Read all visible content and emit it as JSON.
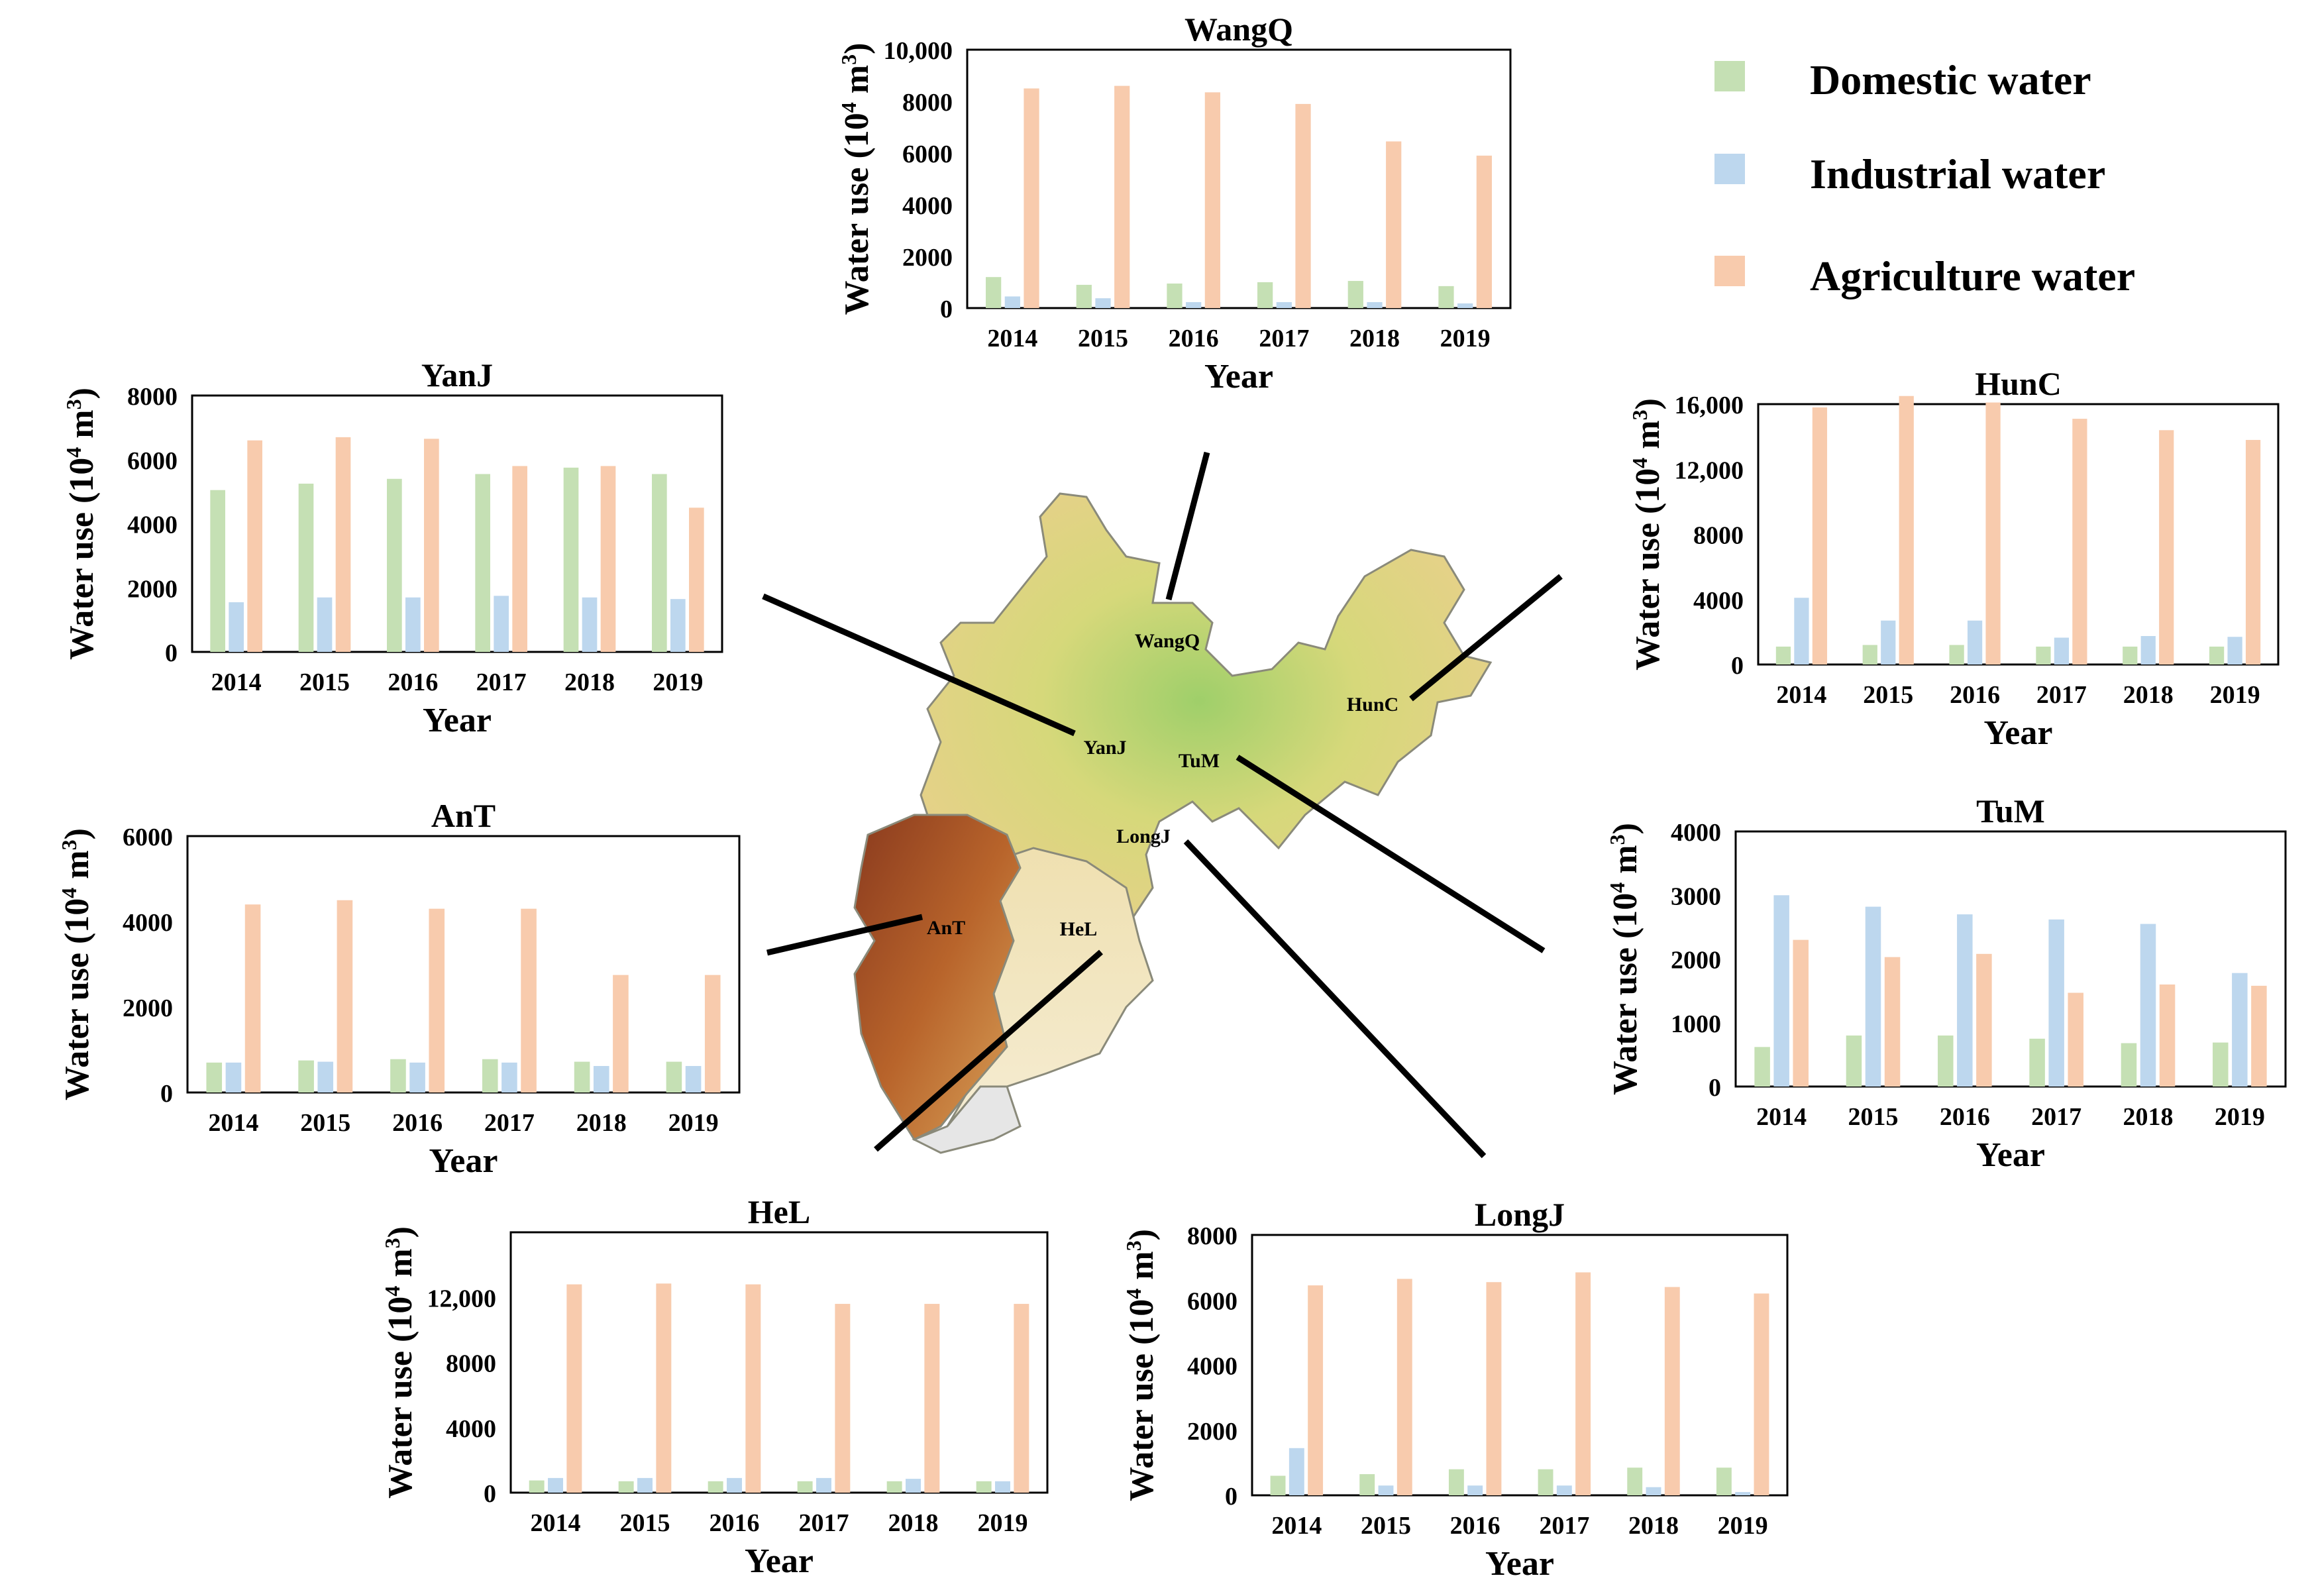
{
  "legend": [
    {
      "key": "domestic",
      "label": "Domestic water",
      "color": "#c5e0b4"
    },
    {
      "key": "industrial",
      "label": "Industrial water",
      "color": "#bdd7ee"
    },
    {
      "key": "agriculture",
      "label": "Agriculture water",
      "color": "#f8cbad"
    }
  ],
  "map": {
    "labels": [
      "WangQ",
      "HunC",
      "YanJ",
      "TuM",
      "LongJ",
      "AnT",
      "HeL"
    ]
  },
  "chart_data": [
    {
      "type": "bar",
      "title": "WangQ",
      "xlabel": "Year",
      "ylabel_main": "Water use (10",
      "ylabel_sup1": "4",
      "ylabel_mid": " m",
      "ylabel_sup2": "3",
      "ylabel_end": ")",
      "categories": [
        "2014",
        "2015",
        "2016",
        "2017",
        "2018",
        "2019"
      ],
      "ylim": [
        0,
        10000
      ],
      "yticks": [
        0,
        2000,
        4000,
        6000,
        8000,
        10000
      ],
      "ytick_labels": [
        "0",
        "2000",
        "4000",
        "6000",
        "8000",
        "10,000"
      ],
      "series": [
        {
          "name": "Domestic water",
          "values": [
            1200,
            900,
            950,
            1000,
            1050,
            850
          ]
        },
        {
          "name": "Industrial water",
          "values": [
            450,
            380,
            230,
            230,
            230,
            180
          ]
        },
        {
          "name": "Agriculture water",
          "values": [
            8500,
            8600,
            8350,
            7900,
            6450,
            5900
          ]
        }
      ]
    },
    {
      "type": "bar",
      "title": "YanJ",
      "xlabel": "Year",
      "ylabel_main": "Water use (10",
      "ylabel_sup1": "4",
      "ylabel_mid": " m",
      "ylabel_sup2": "3",
      "ylabel_end": ")",
      "categories": [
        "2014",
        "2015",
        "2016",
        "2017",
        "2018",
        "2019"
      ],
      "ylim": [
        0,
        8000
      ],
      "yticks": [
        0,
        2000,
        4000,
        6000,
        8000
      ],
      "ytick_labels": [
        "0",
        "2000",
        "4000",
        "6000",
        "8000"
      ],
      "series": [
        {
          "name": "Domestic water",
          "values": [
            5050,
            5250,
            5400,
            5550,
            5750,
            5550
          ]
        },
        {
          "name": "Industrial water",
          "values": [
            1550,
            1700,
            1700,
            1750,
            1700,
            1650
          ]
        },
        {
          "name": "Agriculture water",
          "values": [
            6600,
            6700,
            6650,
            5800,
            5800,
            4500
          ]
        }
      ]
    },
    {
      "type": "bar",
      "title": "HunC",
      "xlabel": "Year",
      "ylabel_main": "Water use (10",
      "ylabel_sup1": "4",
      "ylabel_mid": " m",
      "ylabel_sup2": "3",
      "ylabel_end": ")",
      "categories": [
        "2014",
        "2015",
        "2016",
        "2017",
        "2018",
        "2019"
      ],
      "ylim": [
        0,
        16000
      ],
      "yticks": [
        0,
        4000,
        8000,
        12000,
        16000
      ],
      "ytick_labels": [
        "0",
        "4000",
        "8000",
        "12,000",
        "16,000"
      ],
      "series": [
        {
          "name": "Domestic water",
          "values": [
            1100,
            1200,
            1200,
            1100,
            1100,
            1100
          ]
        },
        {
          "name": "Industrial water",
          "values": [
            4100,
            2700,
            2700,
            1650,
            1750,
            1700
          ]
        },
        {
          "name": "Agriculture water",
          "values": [
            15800,
            16500,
            16100,
            15100,
            14400,
            13800
          ]
        }
      ]
    },
    {
      "type": "bar",
      "title": "AnT",
      "xlabel": "Year",
      "ylabel_main": "Water use (10",
      "ylabel_sup1": "4",
      "ylabel_mid": " m",
      "ylabel_sup2": "3",
      "ylabel_end": ")",
      "categories": [
        "2014",
        "2015",
        "2016",
        "2017",
        "2018",
        "2019"
      ],
      "ylim": [
        0,
        6000
      ],
      "yticks": [
        0,
        2000,
        4000,
        6000
      ],
      "ytick_labels": [
        "0",
        "2000",
        "4000",
        "6000"
      ],
      "series": [
        {
          "name": "Domestic water",
          "values": [
            700,
            750,
            780,
            780,
            720,
            720
          ]
        },
        {
          "name": "Industrial water",
          "values": [
            700,
            720,
            700,
            700,
            620,
            620
          ]
        },
        {
          "name": "Agriculture water",
          "values": [
            4400,
            4500,
            4300,
            4300,
            2750,
            2750
          ]
        }
      ]
    },
    {
      "type": "bar",
      "title": "TuM",
      "xlabel": "Year",
      "ylabel_main": "Water use (10",
      "ylabel_sup1": "4",
      "ylabel_mid": " m",
      "ylabel_sup2": "3",
      "ylabel_end": ")",
      "categories": [
        "2014",
        "2015",
        "2016",
        "2017",
        "2018",
        "2019"
      ],
      "ylim": [
        0,
        4000
      ],
      "yticks": [
        0,
        1000,
        2000,
        3000,
        4000
      ],
      "ytick_labels": [
        "0",
        "1000",
        "2000",
        "3000",
        "4000"
      ],
      "series": [
        {
          "name": "Domestic water",
          "values": [
            620,
            800,
            800,
            750,
            680,
            690
          ]
        },
        {
          "name": "Industrial water",
          "values": [
            3000,
            2820,
            2700,
            2620,
            2550,
            1780
          ]
        },
        {
          "name": "Agriculture water",
          "values": [
            2300,
            2030,
            2080,
            1470,
            1600,
            1580
          ]
        }
      ]
    },
    {
      "type": "bar",
      "title": "HeL",
      "xlabel": "Year",
      "ylabel_main": "Water use (10",
      "ylabel_sup1": "4",
      "ylabel_mid": " m",
      "ylabel_sup2": "3",
      "ylabel_end": ")",
      "categories": [
        "2014",
        "2015",
        "2016",
        "2017",
        "2018",
        "2019"
      ],
      "ylim": [
        0,
        16000
      ],
      "yticks": [
        0,
        4000,
        8000,
        12000
      ],
      "ytick_labels": [
        "0",
        "4000",
        "8000",
        "12,000"
      ],
      "series": [
        {
          "name": "Domestic water",
          "values": [
            750,
            700,
            700,
            700,
            700,
            700
          ]
        },
        {
          "name": "Industrial water",
          "values": [
            900,
            900,
            900,
            900,
            850,
            700
          ]
        },
        {
          "name": "Agriculture water",
          "values": [
            12800,
            12850,
            12800,
            11600,
            11600,
            11600
          ]
        }
      ]
    },
    {
      "type": "bar",
      "title": "LongJ",
      "xlabel": "Year",
      "ylabel_main": "Water use (10",
      "ylabel_sup1": "4",
      "ylabel_mid": " m",
      "ylabel_sup2": "3",
      "ylabel_end": ")",
      "categories": [
        "2014",
        "2015",
        "2016",
        "2017",
        "2018",
        "2019"
      ],
      "ylim": [
        0,
        8000
      ],
      "yticks": [
        0,
        2000,
        4000,
        6000,
        8000
      ],
      "ytick_labels": [
        "0",
        "2000",
        "4000",
        "6000",
        "8000"
      ],
      "series": [
        {
          "name": "Domestic water",
          "values": [
            600,
            650,
            800,
            800,
            850,
            850
          ]
        },
        {
          "name": "Industrial water",
          "values": [
            1450,
            300,
            300,
            300,
            250,
            100
          ]
        },
        {
          "name": "Agriculture water",
          "values": [
            6450,
            6650,
            6550,
            6850,
            6400,
            6200
          ]
        }
      ]
    }
  ]
}
